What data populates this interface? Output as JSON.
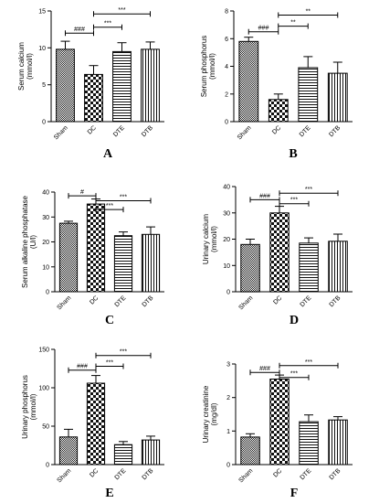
{
  "chart_data": [
    {
      "type": "bar",
      "panel_label": "A",
      "ylabel": "Serum calcium\n(mmol/l)",
      "ylim": [
        0,
        15
      ],
      "yticks": [
        0,
        5,
        10,
        15
      ],
      "categories": [
        "Sham",
        "DC",
        "DTE",
        "DTB"
      ],
      "patterns": [
        "dense",
        "checker",
        "hlines",
        "vlines"
      ],
      "values": [
        9.8,
        6.4,
        9.5,
        9.8
      ],
      "errors": [
        1.1,
        1.2,
        1.2,
        1.0
      ],
      "significance": [
        {
          "from": 0,
          "to": 1,
          "label": "###",
          "y": 12.0
        },
        {
          "from": 1,
          "to": 2,
          "label": "***",
          "y": 12.8
        },
        {
          "from": 1,
          "to": 3,
          "label": "***",
          "y": 14.6
        }
      ]
    },
    {
      "type": "bar",
      "panel_label": "B",
      "ylabel": "Serum phosphorus\n(mmol/l)",
      "ylim": [
        0,
        8
      ],
      "yticks": [
        0,
        2,
        4,
        6,
        8
      ],
      "categories": [
        "Sham",
        "DC",
        "DTE",
        "DTB"
      ],
      "patterns": [
        "dense",
        "checker",
        "hlines",
        "vlines"
      ],
      "values": [
        5.8,
        1.6,
        3.9,
        3.5
      ],
      "errors": [
        0.3,
        0.4,
        0.8,
        0.8
      ],
      "significance": [
        {
          "from": 0,
          "to": 1,
          "label": "###",
          "y": 6.5
        },
        {
          "from": 1,
          "to": 2,
          "label": "**",
          "y": 6.9
        },
        {
          "from": 1,
          "to": 3,
          "label": "**",
          "y": 7.7
        }
      ]
    },
    {
      "type": "bar",
      "panel_label": "C",
      "ylabel": "Serum alkaline phosphatase\n(U/l)",
      "ylim": [
        0,
        40
      ],
      "yticks": [
        0,
        10,
        20,
        30,
        40
      ],
      "categories": [
        "Sham",
        "DC",
        "DTE",
        "DTB"
      ],
      "patterns": [
        "dense",
        "checker",
        "hlines",
        "vlines"
      ],
      "values": [
        27.5,
        35.2,
        22.5,
        23.0
      ],
      "errors": [
        0.8,
        2.0,
        1.5,
        3.0
      ],
      "significance": [
        {
          "from": 0,
          "to": 1,
          "label": "#",
          "y": 38.5
        },
        {
          "from": 1,
          "to": 2,
          "label": "***",
          "y": 33.0
        },
        {
          "from": 1,
          "to": 3,
          "label": "***",
          "y": 36.5
        }
      ]
    },
    {
      "type": "bar",
      "panel_label": "D",
      "ylabel": "Urinary calcium\n(mmol/l)",
      "ylim": [
        0,
        40
      ],
      "yticks": [
        0,
        10,
        20,
        30,
        40
      ],
      "categories": [
        "Sham",
        "DC",
        "DTE",
        "DTB"
      ],
      "patterns": [
        "dense",
        "checker",
        "hlines",
        "vlines"
      ],
      "values": [
        18.0,
        30.0,
        18.5,
        19.2
      ],
      "errors": [
        2.0,
        2.5,
        2.0,
        2.7
      ],
      "significance": [
        {
          "from": 0,
          "to": 1,
          "label": "###",
          "y": 35.0
        },
        {
          "from": 1,
          "to": 2,
          "label": "***",
          "y": 33.5
        },
        {
          "from": 1,
          "to": 3,
          "label": "***",
          "y": 37.5
        }
      ]
    },
    {
      "type": "bar",
      "panel_label": "E",
      "ylabel": "Urinary phosphorus\n(mmol/l)",
      "ylim": [
        0,
        150
      ],
      "yticks": [
        0,
        50,
        100,
        150
      ],
      "categories": [
        "Sham",
        "DC",
        "DTE",
        "DTB"
      ],
      "patterns": [
        "dense",
        "checker",
        "hlines",
        "vlines"
      ],
      "values": [
        36,
        106,
        26,
        32
      ],
      "errors": [
        10,
        10,
        4,
        5
      ],
      "significance": [
        {
          "from": 0,
          "to": 1,
          "label": "###",
          "y": 123
        },
        {
          "from": 1,
          "to": 2,
          "label": "***",
          "y": 128
        },
        {
          "from": 1,
          "to": 3,
          "label": "***",
          "y": 142
        }
      ]
    },
    {
      "type": "bar",
      "panel_label": "F",
      "ylabel": "Urinary creatinine\n(mg/dl)",
      "ylim": [
        0,
        3
      ],
      "yticks": [
        0,
        1,
        2,
        3
      ],
      "categories": [
        "Sham",
        "DC",
        "DTE",
        "DTB"
      ],
      "patterns": [
        "dense",
        "checker",
        "hlines",
        "vlines"
      ],
      "values": [
        0.82,
        2.55,
        1.28,
        1.33
      ],
      "errors": [
        0.1,
        0.12,
        0.2,
        0.1
      ],
      "significance": [
        {
          "from": 0,
          "to": 1,
          "label": "###",
          "y": 2.75
        },
        {
          "from": 1,
          "to": 2,
          "label": "***",
          "y": 2.6
        },
        {
          "from": 1,
          "to": 3,
          "label": "***",
          "y": 2.95
        }
      ]
    }
  ]
}
